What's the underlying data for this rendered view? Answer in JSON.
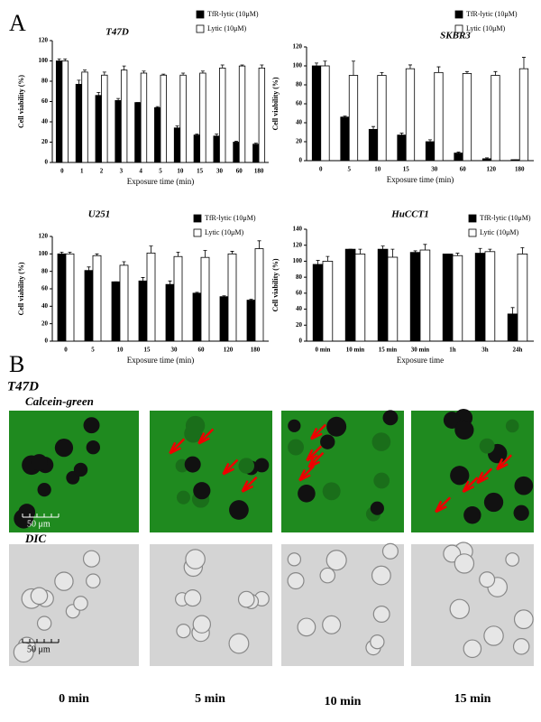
{
  "panel_a_label": "A",
  "chart_data": [
    {
      "type": "bar",
      "title": "T47D",
      "ylabel": "Cell viability (%)",
      "xlabel": "Exposure time (min)",
      "categories": [
        "0",
        "1",
        "2",
        "3",
        "4",
        "5",
        "10",
        "15",
        "30",
        "60",
        "180"
      ],
      "series": [
        {
          "name": "TfR-lytic (10μM)",
          "color": "#000000",
          "values": [
            100,
            77,
            66,
            61,
            59,
            54,
            34,
            27,
            26,
            20,
            18
          ],
          "errors": [
            2,
            4,
            3,
            2,
            0,
            1,
            2,
            1,
            2,
            1,
            1
          ]
        },
        {
          "name": "Lytic (10μM)",
          "color": "#ffffff",
          "values": [
            100,
            89,
            86,
            91,
            88,
            86,
            86,
            88,
            93,
            95,
            93
          ],
          "errors": [
            2,
            2,
            3,
            4,
            2,
            1,
            2,
            2,
            3,
            1,
            3
          ]
        }
      ],
      "ylim": [
        0,
        120
      ],
      "yticks": [
        0,
        20,
        40,
        60,
        80,
        100,
        120
      ]
    },
    {
      "type": "bar",
      "title": "SKBR3",
      "ylabel": "Cell viability (%)",
      "xlabel": "Exposure time (min)",
      "categories": [
        "0",
        "5",
        "10",
        "15",
        "30",
        "60",
        "120",
        "180"
      ],
      "series": [
        {
          "name": "TfR-lytic (10μM)",
          "color": "#000000",
          "values": [
            100,
            46,
            33,
            27,
            20,
            8,
            2,
            1
          ],
          "errors": [
            3,
            1,
            3,
            2,
            2,
            1,
            1,
            0
          ]
        },
        {
          "name": "Lytic (10μM)",
          "color": "#ffffff",
          "values": [
            100,
            90,
            90,
            97,
            93,
            92,
            90,
            97
          ],
          "errors": [
            5,
            15,
            3,
            4,
            6,
            2,
            4,
            12
          ]
        }
      ],
      "ylim": [
        0,
        120
      ],
      "yticks": [
        0,
        20,
        40,
        60,
        80,
        100,
        120
      ]
    },
    {
      "type": "bar",
      "title": "U251",
      "ylabel": "Cell viability (%)",
      "xlabel": "Exposure time (min)",
      "categories": [
        "0",
        "5",
        "10",
        "15",
        "30",
        "60",
        "120",
        "180"
      ],
      "series": [
        {
          "name": "TfR-lytic (10μM)",
          "color": "#000000",
          "values": [
            100,
            81,
            68,
            69,
            65,
            55,
            51,
            47
          ],
          "errors": [
            2,
            4,
            0,
            4,
            4,
            1,
            1,
            1
          ]
        },
        {
          "name": "Lytic (10μM)",
          "color": "#ffffff",
          "values": [
            100,
            98,
            87,
            101,
            97,
            96,
            100,
            106
          ],
          "errors": [
            2,
            2,
            4,
            8,
            5,
            8,
            3,
            9
          ]
        }
      ],
      "ylim": [
        0,
        120
      ],
      "yticks": [
        0,
        20,
        40,
        60,
        80,
        100,
        120
      ]
    },
    {
      "type": "bar",
      "title": "HuCCT1",
      "ylabel": "Cell viability (%)",
      "xlabel": "Exposure time",
      "categories": [
        "0 min",
        "10 min",
        "15 min",
        "30 min",
        "1h",
        "3h",
        "24h"
      ],
      "series": [
        {
          "name": "TfR-lytic (10μM)",
          "color": "#000000",
          "values": [
            96,
            115,
            115,
            111,
            109,
            110,
            34
          ],
          "errors": [
            5,
            0,
            4,
            2,
            0,
            6,
            8
          ]
        },
        {
          "name": "Lytic (10μM)",
          "color": "#ffffff",
          "values": [
            100,
            109,
            105,
            114,
            107,
            112,
            109
          ],
          "errors": [
            6,
            6,
            10,
            7,
            3,
            3,
            8
          ]
        }
      ],
      "ylim": [
        0,
        140
      ],
      "yticks": [
        0,
        20,
        40,
        60,
        80,
        100,
        120,
        140
      ]
    }
  ],
  "panel_b": {
    "label": "B",
    "cell_line": "T47D",
    "rows": [
      "Calcein-green",
      "DIC"
    ],
    "scale_bar": "50 μm",
    "times": [
      "0 min",
      "5 min",
      "10 min",
      "15 min"
    ]
  }
}
